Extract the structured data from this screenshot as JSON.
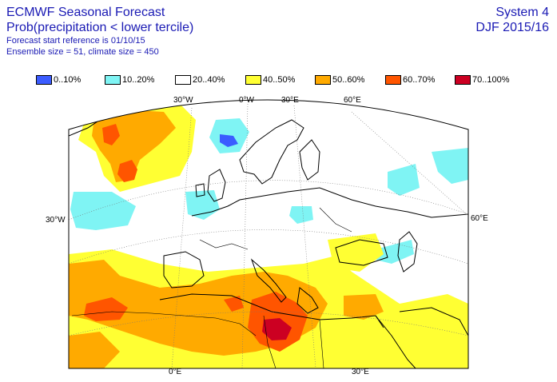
{
  "header": {
    "title": "ECMWF Seasonal Forecast",
    "subtitle": "Prob(precipitation < lower tercile)",
    "start_ref": "Forecast start reference is 01/10/15",
    "ensemble": "Ensemble size = 51, climate size = 450",
    "system": "System 4",
    "period": "DJF 2015/16"
  },
  "legend": [
    {
      "label": "0..10%",
      "color": "#3b5cff"
    },
    {
      "label": "10..20%",
      "color": "#7ff4f4"
    },
    {
      "label": "20..40%",
      "color": "#ffffff"
    },
    {
      "label": "40..50%",
      "color": "#ffff33"
    },
    {
      "label": "50..60%",
      "color": "#ffaa00"
    },
    {
      "label": "60..70%",
      "color": "#ff5500"
    },
    {
      "label": "70..100%",
      "color": "#cc0022"
    }
  ],
  "map": {
    "top_labels": [
      "30°W",
      "0°W",
      "30°E",
      "60°E"
    ],
    "bottom_labels": [
      "0°E",
      "30°E"
    ],
    "left_label": "30°W",
    "right_label": "60°E"
  }
}
